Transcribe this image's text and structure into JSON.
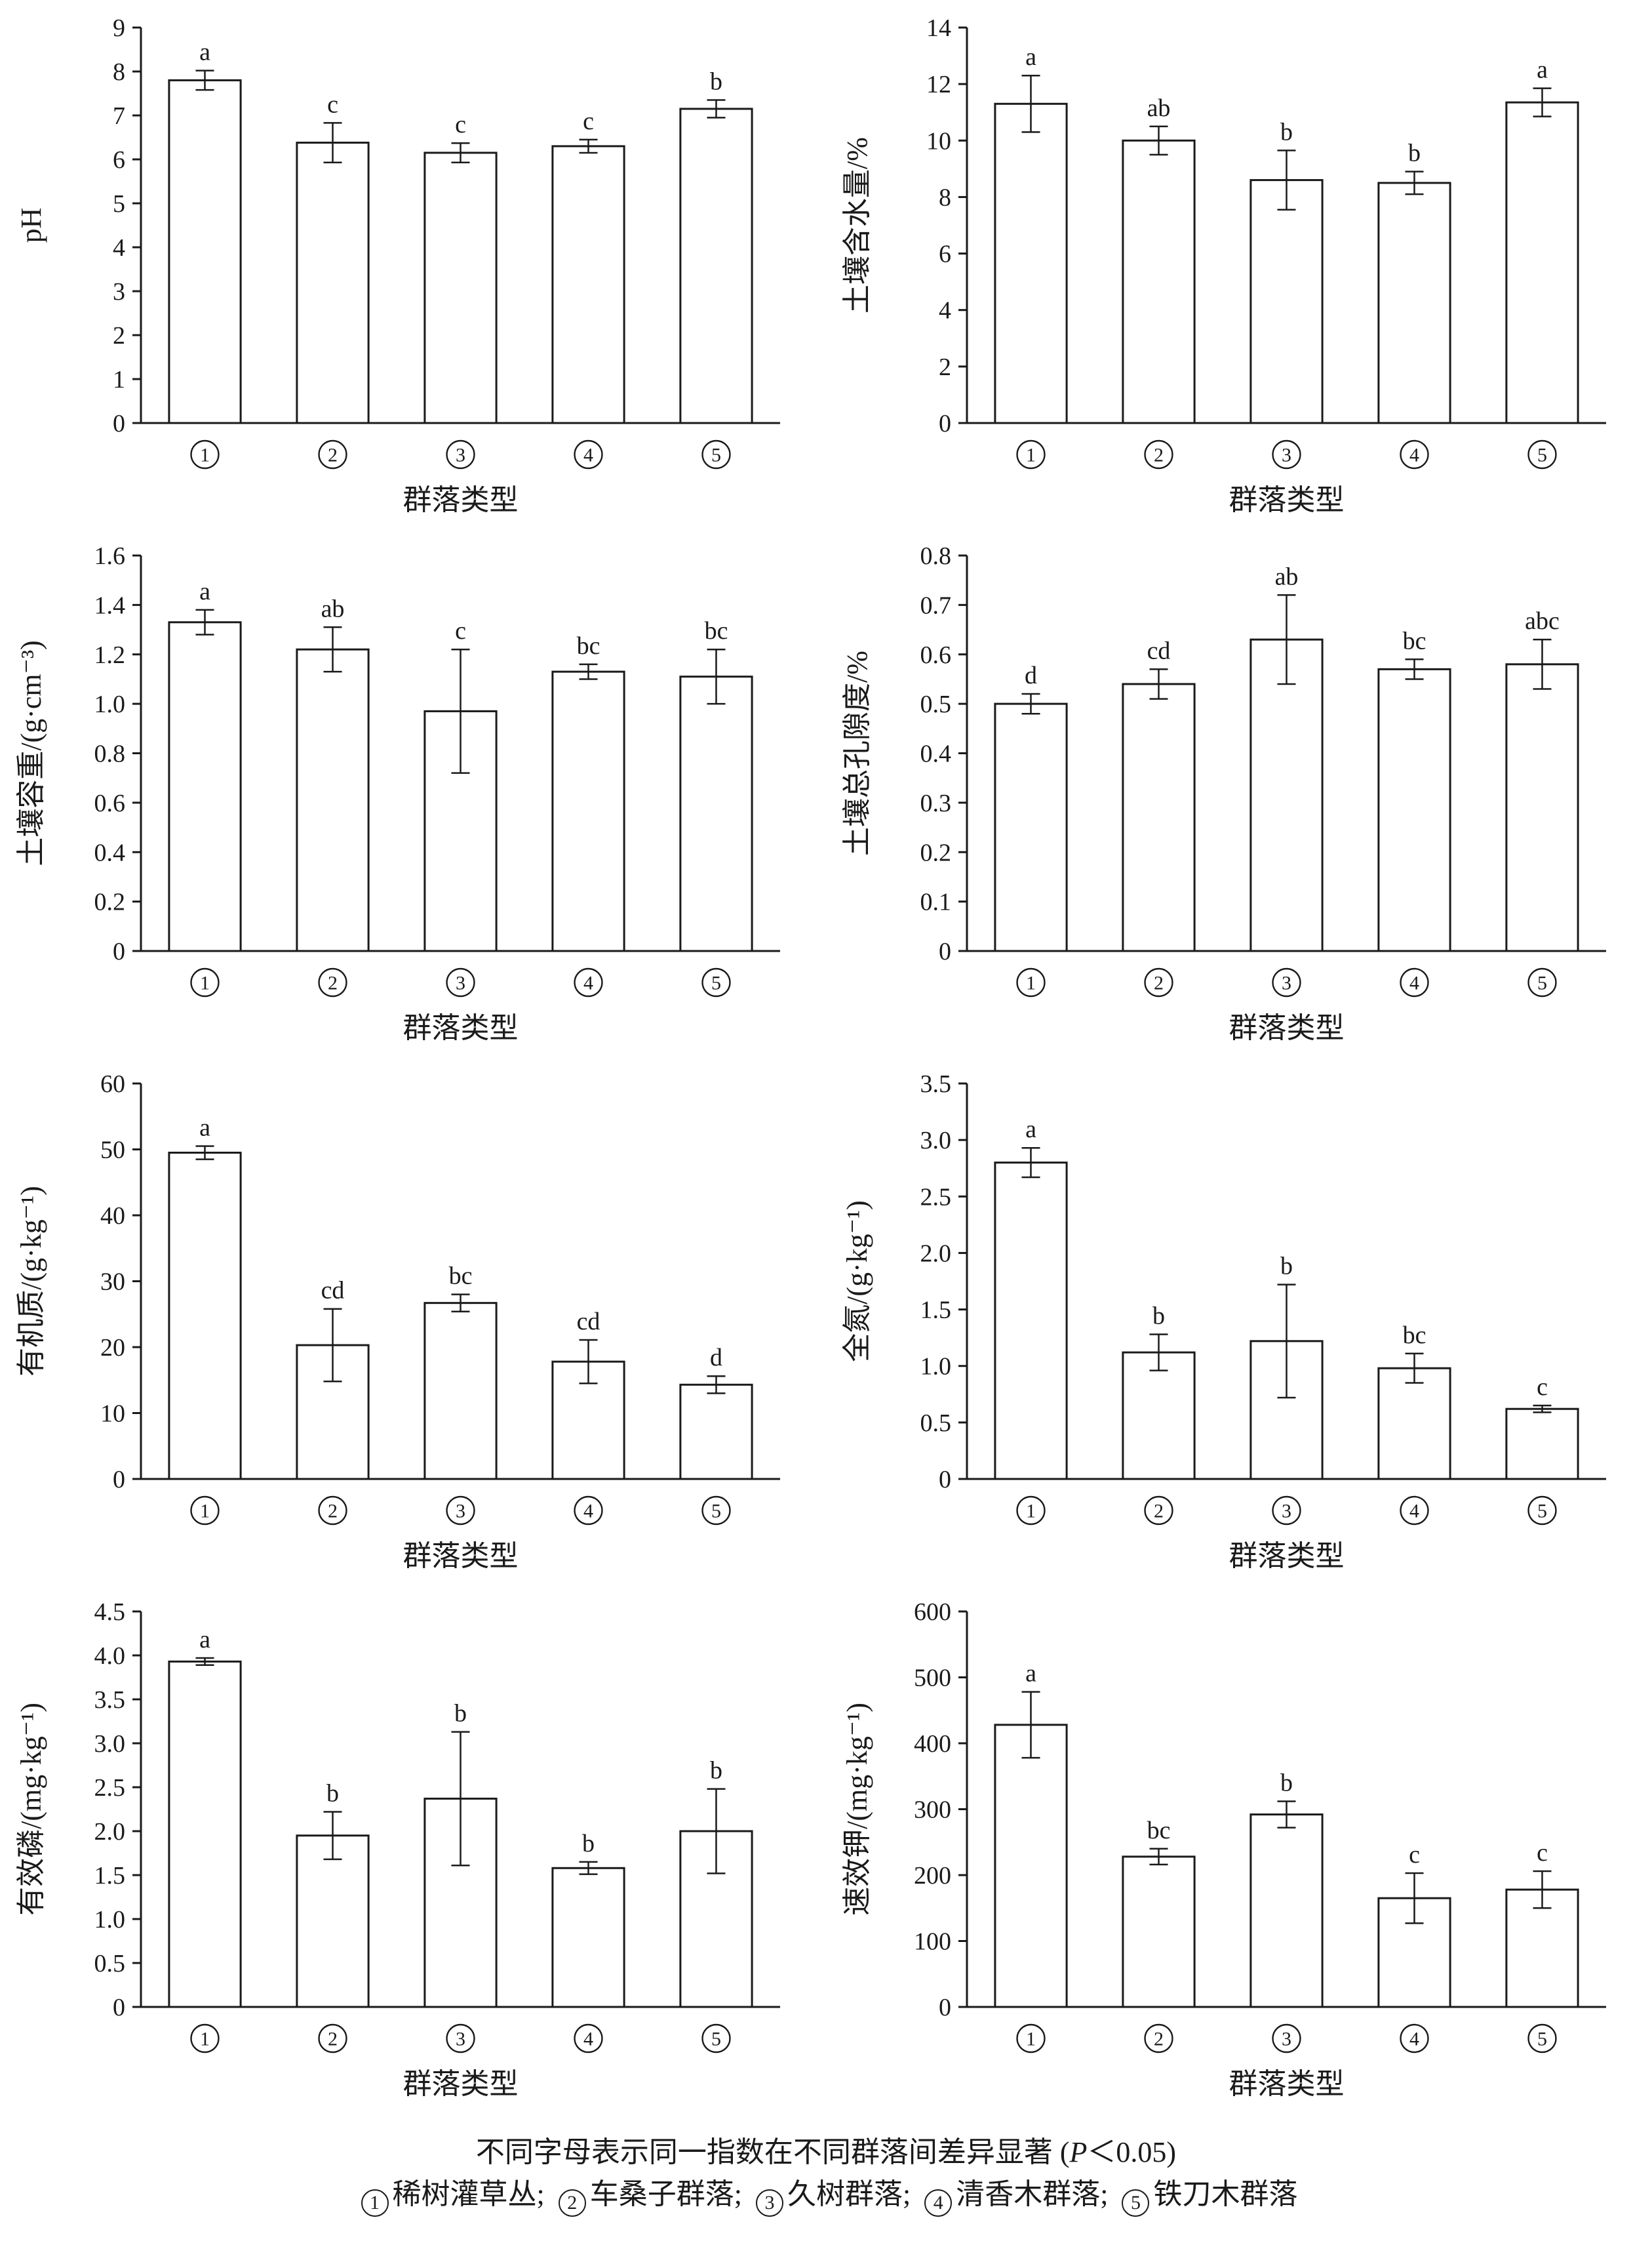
{
  "chart_data": [
    {
      "type": "bar",
      "ylabel": "pH",
      "xlabel": "群落类型",
      "ylim": [
        0,
        9
      ],
      "yticks": [
        "0",
        "1",
        "2",
        "3",
        "4",
        "5",
        "6",
        "7",
        "8",
        "9"
      ],
      "categories": [
        "①",
        "②",
        "③",
        "④",
        "⑤"
      ],
      "values": [
        7.8,
        6.38,
        6.15,
        6.3,
        7.15
      ],
      "errors": [
        0.22,
        0.45,
        0.22,
        0.15,
        0.2
      ],
      "letters": [
        "a",
        "c",
        "c",
        "c",
        "b"
      ]
    },
    {
      "type": "bar",
      "ylabel": "土壤含水量/%",
      "xlabel": "群落类型",
      "ylim": [
        0,
        14
      ],
      "yticks": [
        "0",
        "2",
        "4",
        "6",
        "8",
        "10",
        "12",
        "14"
      ],
      "categories": [
        "①",
        "②",
        "③",
        "④",
        "⑤"
      ],
      "values": [
        11.3,
        10.0,
        8.6,
        8.5,
        11.35
      ],
      "errors": [
        1.0,
        0.5,
        1.05,
        0.4,
        0.5
      ],
      "letters": [
        "a",
        "ab",
        "b",
        "b",
        "a"
      ]
    },
    {
      "type": "bar",
      "ylabel": "土壤容重/(g·cm⁻³)",
      "xlabel": "群落类型",
      "ylim": [
        0,
        1.6
      ],
      "yticks": [
        "0",
        "0.2",
        "0.4",
        "0.6",
        "0.8",
        "1.0",
        "1.2",
        "1.4",
        "1.6"
      ],
      "categories": [
        "①",
        "②",
        "③",
        "④",
        "⑤"
      ],
      "values": [
        1.33,
        1.22,
        0.97,
        1.13,
        1.11
      ],
      "errors": [
        0.05,
        0.09,
        0.25,
        0.03,
        0.11
      ],
      "letters": [
        "a",
        "ab",
        "c",
        "bc",
        "bc"
      ]
    },
    {
      "type": "bar",
      "ylabel": "土壤总孔隙度/%",
      "xlabel": "群落类型",
      "ylim": [
        0,
        0.8
      ],
      "yticks": [
        "0",
        "0.1",
        "0.2",
        "0.3",
        "0.4",
        "0.5",
        "0.6",
        "0.7",
        "0.8"
      ],
      "categories": [
        "①",
        "②",
        "③",
        "④",
        "⑤"
      ],
      "values": [
        0.5,
        0.54,
        0.63,
        0.57,
        0.58
      ],
      "errors": [
        0.02,
        0.03,
        0.09,
        0.02,
        0.05
      ],
      "letters": [
        "d",
        "cd",
        "ab",
        "bc",
        "abc"
      ]
    },
    {
      "type": "bar",
      "ylabel": "有机质/(g·kg⁻¹)",
      "xlabel": "群落类型",
      "ylim": [
        0,
        60
      ],
      "yticks": [
        "0",
        "10",
        "20",
        "30",
        "40",
        "50",
        "60"
      ],
      "categories": [
        "①",
        "②",
        "③",
        "④",
        "⑤"
      ],
      "values": [
        49.5,
        20.3,
        26.7,
        17.8,
        14.3
      ],
      "errors": [
        1.0,
        5.5,
        1.3,
        3.3,
        1.3
      ],
      "letters": [
        "a",
        "cd",
        "bc",
        "cd",
        "d"
      ]
    },
    {
      "type": "bar",
      "ylabel": "全氮/(g·kg⁻¹)",
      "xlabel": "群落类型",
      "ylim": [
        0,
        3.5
      ],
      "yticks": [
        "0",
        "0.5",
        "1.0",
        "1.5",
        "2.0",
        "2.5",
        "3.0",
        "3.5"
      ],
      "categories": [
        "①",
        "②",
        "③",
        "④",
        "⑤"
      ],
      "values": [
        2.8,
        1.12,
        1.22,
        0.98,
        0.62
      ],
      "errors": [
        0.13,
        0.16,
        0.5,
        0.13,
        0.03
      ],
      "letters": [
        "a",
        "b",
        "b",
        "bc",
        "c"
      ]
    },
    {
      "type": "bar",
      "ylabel": "有效磷/(mg·kg⁻¹)",
      "xlabel": "群落类型",
      "ylim": [
        0,
        4.5
      ],
      "yticks": [
        "0",
        "0.5",
        "1.0",
        "1.5",
        "2.0",
        "2.5",
        "3.0",
        "3.5",
        "4.0",
        "4.5"
      ],
      "categories": [
        "①",
        "②",
        "③",
        "④",
        "⑤"
      ],
      "values": [
        3.93,
        1.95,
        2.37,
        1.58,
        2.0
      ],
      "errors": [
        0.04,
        0.27,
        0.76,
        0.07,
        0.48
      ],
      "letters": [
        "a",
        "b",
        "b",
        "b",
        "b"
      ]
    },
    {
      "type": "bar",
      "ylabel": "速效钾/(mg·kg⁻¹)",
      "xlabel": "群落类型",
      "ylim": [
        0,
        600
      ],
      "yticks": [
        "0",
        "100",
        "200",
        "300",
        "400",
        "500",
        "600"
      ],
      "categories": [
        "①",
        "②",
        "③",
        "④",
        "⑤"
      ],
      "values": [
        428,
        228,
        292,
        165,
        178
      ],
      "errors": [
        50,
        12,
        20,
        38,
        28
      ],
      "letters": [
        "a",
        "bc",
        "b",
        "c",
        "c"
      ]
    }
  ],
  "caption": {
    "line1_pre": "不同字母表示同一指数在不同群落间差异显著 (",
    "p_symbol": "P",
    "line1_post": "＜0.05)",
    "legend_items": [
      {
        "num": "1",
        "marker": "①",
        "name": "稀树灌草丛"
      },
      {
        "num": "2",
        "marker": "②",
        "name": "车桑子群落"
      },
      {
        "num": "3",
        "marker": "③",
        "name": "久树群落"
      },
      {
        "num": "4",
        "marker": "④",
        "name": "清香木群落"
      },
      {
        "num": "5",
        "marker": "⑤",
        "name": "铁刀木群落"
      }
    ],
    "legend_separator": "; "
  }
}
